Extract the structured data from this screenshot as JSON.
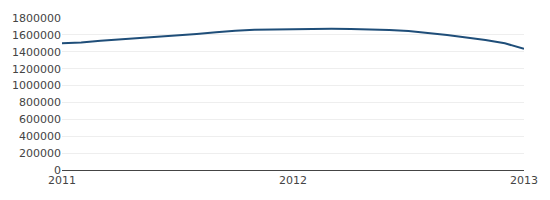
{
  "chart_data": {
    "type": "line",
    "x": [
      2011.0,
      2011.083,
      2011.167,
      2011.25,
      2011.333,
      2011.417,
      2011.5,
      2011.583,
      2011.667,
      2011.75,
      2011.833,
      2011.917,
      2012.0,
      2012.083,
      2012.167,
      2012.25,
      2012.333,
      2012.417,
      2012.5,
      2012.583,
      2012.667,
      2012.75,
      2012.833,
      2012.917,
      2013.0
    ],
    "values": [
      1500000,
      1510000,
      1530000,
      1545000,
      1560000,
      1575000,
      1590000,
      1610000,
      1630000,
      1650000,
      1660000,
      1665000,
      1667894,
      1670000,
      1672000,
      1670000,
      1665000,
      1658000,
      1645000,
      1625000,
      1600000,
      1570000,
      1540000,
      1500000,
      1435618
    ],
    "color": "#1f4e79",
    "xlim": [
      2011,
      2013
    ],
    "xticks": [
      2011,
      2012,
      2013
    ],
    "ylim": [
      0,
      1800000
    ],
    "yticks": [
      0,
      200000,
      400000,
      600000,
      800000,
      1000000,
      1200000,
      1400000,
      1600000,
      1800000
    ],
    "grid": true
  }
}
